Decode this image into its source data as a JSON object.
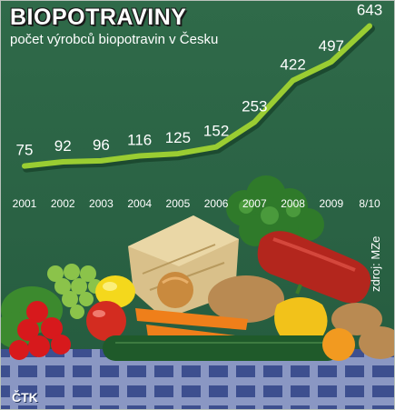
{
  "header": {
    "title": "BIOPOTRAVINY",
    "subtitle": "počet výrobců biopotravin v Česku"
  },
  "source_label": "zdroj: MZe",
  "credit": "ČTK",
  "chart_data": {
    "type": "line",
    "title": "BIOPOTRAVINY",
    "subtitle": "počet výrobců biopotravin v Česku",
    "categories": [
      "2001",
      "2002",
      "2003",
      "2004",
      "2005",
      "2006",
      "2007",
      "2008",
      "2009",
      "8/10"
    ],
    "values": [
      75,
      92,
      96,
      116,
      125,
      152,
      253,
      422,
      497,
      643
    ],
    "data_labels": [
      "75",
      "92",
      "96",
      "116",
      "125",
      "152",
      "253",
      "422",
      "497",
      "643"
    ],
    "xlabel": "",
    "ylabel": "",
    "ylim": [
      0,
      700
    ],
    "grid": false,
    "legend": "none",
    "colors": {
      "line": "#9acd32",
      "text": "#ffffff",
      "background": "#2a6244"
    }
  }
}
